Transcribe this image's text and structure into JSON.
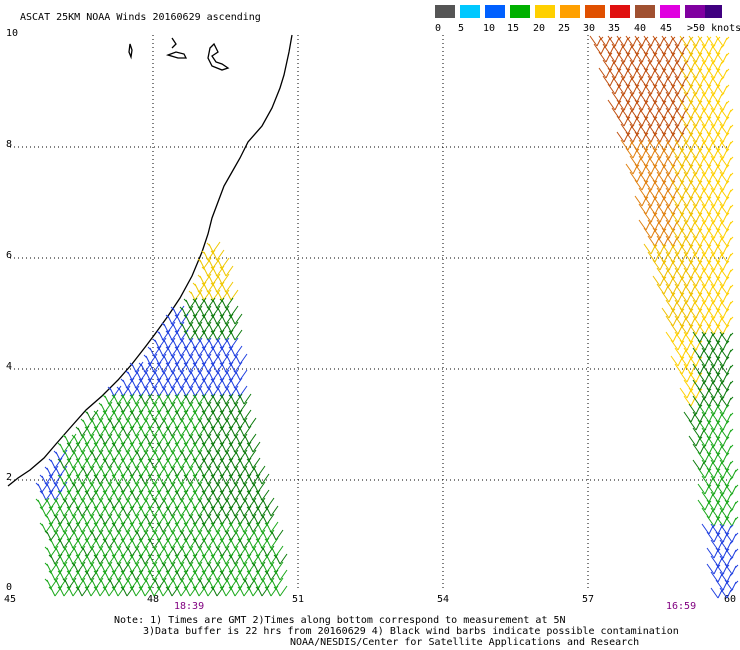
{
  "title": "ASCAT 25KM NOAA Winds 20160629 ascending",
  "legend": {
    "colors": [
      "#555555",
      "#00c8ff",
      "#0060ff",
      "#00b000",
      "#ffd000",
      "#ffa000",
      "#e05000",
      "#e01010",
      "#a05030",
      "#e000e0",
      "#8000a0",
      "#400080"
    ],
    "labels": [
      "0",
      "5",
      "10",
      "15",
      "20",
      "25",
      "30",
      "35",
      "40",
      "45",
      ">50 knots"
    ]
  },
  "axes": {
    "x_ticks": [
      "45",
      "48",
      "51",
      "54",
      "57",
      "60"
    ],
    "y_ticks": [
      "0",
      "2",
      "4",
      "6",
      "8",
      "10"
    ]
  },
  "pass_times": [
    "18:39",
    "16:59"
  ],
  "notes": [
    "Note: 1) Times are GMT 2)Times along bottom correspond to measurement at 5N",
    "3)Data buffer is 22 hrs from 20160629 4) Black wind barbs indicate possible contamination",
    "NOAA/NESDIS/Center for Satellite Applications and Research"
  ]
}
